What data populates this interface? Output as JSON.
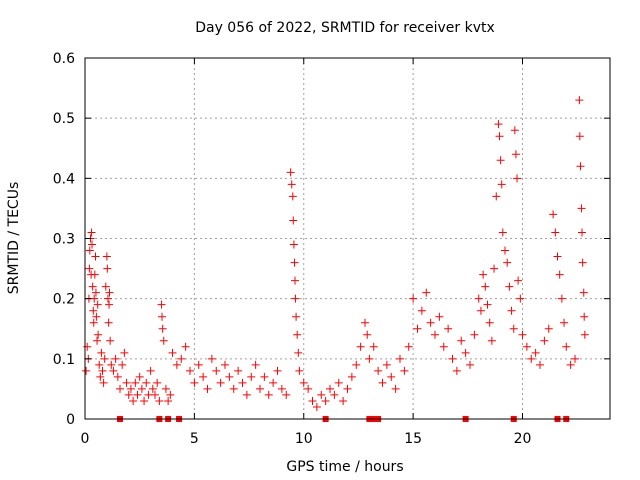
{
  "chart_data": {
    "type": "scatter",
    "title": "Day 056 of 2022, SRMTID for receiver kvtx",
    "xlabel": "GPS time / hours",
    "ylabel": "SRMTID / TECUs",
    "xlim": [
      0,
      24
    ],
    "ylim": [
      0,
      0.6
    ],
    "x_ticks": [
      0,
      5,
      10,
      15,
      20
    ],
    "x_tick_labels": [
      "0",
      "5",
      "10",
      "15",
      "20"
    ],
    "y_ticks": [
      0,
      0.1,
      0.2,
      0.3,
      0.4,
      0.5,
      0.6
    ],
    "y_tick_labels": [
      "0",
      "0.1",
      "0.2",
      "0.3",
      "0.4",
      "0.5",
      "0.6"
    ],
    "grid": true,
    "marker": "+",
    "marker_color": "#ff0000",
    "series": [
      {
        "name": "SRMTID",
        "points": [
          [
            0.05,
            0.08
          ],
          [
            0.1,
            0.12
          ],
          [
            0.15,
            0.1
          ],
          [
            0.18,
            0.2
          ],
          [
            0.2,
            0.25
          ],
          [
            0.22,
            0.28
          ],
          [
            0.25,
            0.3
          ],
          [
            0.28,
            0.24
          ],
          [
            0.3,
            0.31
          ],
          [
            0.32,
            0.29
          ],
          [
            0.35,
            0.22
          ],
          [
            0.38,
            0.18
          ],
          [
            0.4,
            0.16
          ],
          [
            0.42,
            0.2
          ],
          [
            0.45,
            0.24
          ],
          [
            0.48,
            0.27
          ],
          [
            0.5,
            0.21
          ],
          [
            0.52,
            0.17
          ],
          [
            0.55,
            0.13
          ],
          [
            0.58,
            0.19
          ],
          [
            0.6,
            0.14
          ],
          [
            0.65,
            0.09
          ],
          [
            0.7,
            0.07
          ],
          [
            0.75,
            0.11
          ],
          [
            0.8,
            0.08
          ],
          [
            0.85,
            0.06
          ],
          [
            0.9,
            0.1
          ],
          [
            0.95,
            0.22
          ],
          [
            1.0,
            0.27
          ],
          [
            1.02,
            0.25
          ],
          [
            1.05,
            0.2
          ],
          [
            1.08,
            0.16
          ],
          [
            1.1,
            0.19
          ],
          [
            1.12,
            0.21
          ],
          [
            1.15,
            0.13
          ],
          [
            1.2,
            0.09
          ],
          [
            1.3,
            0.08
          ],
          [
            1.4,
            0.1
          ],
          [
            1.5,
            0.07
          ],
          [
            1.6,
            0.05
          ],
          [
            1.7,
            0.09
          ],
          [
            1.8,
            0.11
          ],
          [
            1.9,
            0.06
          ],
          [
            2.0,
            0.04
          ],
          [
            2.1,
            0.05
          ],
          [
            2.2,
            0.03
          ],
          [
            2.3,
            0.06
          ],
          [
            2.4,
            0.04
          ],
          [
            2.5,
            0.07
          ],
          [
            2.6,
            0.05
          ],
          [
            2.7,
            0.03
          ],
          [
            2.8,
            0.06
          ],
          [
            2.9,
            0.04
          ],
          [
            3.0,
            0.08
          ],
          [
            3.1,
            0.05
          ],
          [
            3.2,
            0.04
          ],
          [
            3.3,
            0.06
          ],
          [
            3.4,
            0.03
          ],
          [
            3.5,
            0.19
          ],
          [
            3.52,
            0.17
          ],
          [
            3.55,
            0.15
          ],
          [
            3.6,
            0.13
          ],
          [
            3.7,
            0.05
          ],
          [
            3.8,
            0.03
          ],
          [
            3.9,
            0.04
          ],
          [
            4.0,
            0.11
          ],
          [
            4.2,
            0.09
          ],
          [
            4.4,
            0.1
          ],
          [
            4.6,
            0.12
          ],
          [
            4.8,
            0.08
          ],
          [
            5.0,
            0.06
          ],
          [
            5.2,
            0.09
          ],
          [
            5.4,
            0.07
          ],
          [
            5.6,
            0.05
          ],
          [
            5.8,
            0.1
          ],
          [
            6.0,
            0.08
          ],
          [
            6.2,
            0.06
          ],
          [
            6.4,
            0.09
          ],
          [
            6.6,
            0.07
          ],
          [
            6.8,
            0.05
          ],
          [
            7.0,
            0.08
          ],
          [
            7.2,
            0.06
          ],
          [
            7.4,
            0.04
          ],
          [
            7.6,
            0.07
          ],
          [
            7.8,
            0.09
          ],
          [
            8.0,
            0.05
          ],
          [
            8.2,
            0.07
          ],
          [
            8.4,
            0.04
          ],
          [
            8.6,
            0.06
          ],
          [
            8.8,
            0.08
          ],
          [
            9.0,
            0.05
          ],
          [
            9.2,
            0.04
          ],
          [
            9.4,
            0.41
          ],
          [
            9.45,
            0.39
          ],
          [
            9.5,
            0.37
          ],
          [
            9.52,
            0.33
          ],
          [
            9.55,
            0.29
          ],
          [
            9.58,
            0.26
          ],
          [
            9.6,
            0.23
          ],
          [
            9.62,
            0.2
          ],
          [
            9.65,
            0.17
          ],
          [
            9.7,
            0.14
          ],
          [
            9.75,
            0.11
          ],
          [
            9.8,
            0.08
          ],
          [
            10.0,
            0.06
          ],
          [
            10.2,
            0.05
          ],
          [
            10.4,
            0.03
          ],
          [
            10.6,
            0.02
          ],
          [
            10.8,
            0.04
          ],
          [
            11.0,
            0.03
          ],
          [
            11.2,
            0.05
          ],
          [
            11.4,
            0.04
          ],
          [
            11.6,
            0.06
          ],
          [
            11.8,
            0.03
          ],
          [
            12.0,
            0.05
          ],
          [
            12.2,
            0.07
          ],
          [
            12.4,
            0.09
          ],
          [
            12.6,
            0.12
          ],
          [
            12.8,
            0.16
          ],
          [
            12.9,
            0.14
          ],
          [
            13.0,
            0.1
          ],
          [
            13.2,
            0.12
          ],
          [
            13.4,
            0.08
          ],
          [
            13.6,
            0.06
          ],
          [
            13.8,
            0.09
          ],
          [
            14.0,
            0.07
          ],
          [
            14.2,
            0.05
          ],
          [
            14.4,
            0.1
          ],
          [
            14.6,
            0.08
          ],
          [
            14.8,
            0.12
          ],
          [
            15.0,
            0.2
          ],
          [
            15.2,
            0.15
          ],
          [
            15.4,
            0.18
          ],
          [
            15.6,
            0.21
          ],
          [
            15.8,
            0.16
          ],
          [
            16.0,
            0.14
          ],
          [
            16.2,
            0.17
          ],
          [
            16.4,
            0.12
          ],
          [
            16.6,
            0.15
          ],
          [
            16.8,
            0.1
          ],
          [
            17.0,
            0.08
          ],
          [
            17.2,
            0.13
          ],
          [
            17.4,
            0.11
          ],
          [
            17.6,
            0.09
          ],
          [
            17.8,
            0.14
          ],
          [
            18.0,
            0.2
          ],
          [
            18.1,
            0.18
          ],
          [
            18.2,
            0.24
          ],
          [
            18.3,
            0.22
          ],
          [
            18.4,
            0.19
          ],
          [
            18.5,
            0.16
          ],
          [
            18.6,
            0.13
          ],
          [
            18.7,
            0.25
          ],
          [
            18.8,
            0.37
          ],
          [
            18.9,
            0.49
          ],
          [
            18.95,
            0.47
          ],
          [
            19.0,
            0.43
          ],
          [
            19.05,
            0.39
          ],
          [
            19.1,
            0.31
          ],
          [
            19.2,
            0.28
          ],
          [
            19.3,
            0.26
          ],
          [
            19.4,
            0.22
          ],
          [
            19.5,
            0.18
          ],
          [
            19.6,
            0.15
          ],
          [
            19.65,
            0.48
          ],
          [
            19.7,
            0.44
          ],
          [
            19.75,
            0.4
          ],
          [
            19.8,
            0.23
          ],
          [
            19.9,
            0.2
          ],
          [
            20.0,
            0.14
          ],
          [
            20.2,
            0.12
          ],
          [
            20.4,
            0.1
          ],
          [
            20.6,
            0.11
          ],
          [
            20.8,
            0.09
          ],
          [
            21.0,
            0.13
          ],
          [
            21.2,
            0.15
          ],
          [
            21.4,
            0.34
          ],
          [
            21.5,
            0.31
          ],
          [
            21.6,
            0.27
          ],
          [
            21.7,
            0.24
          ],
          [
            21.8,
            0.2
          ],
          [
            21.9,
            0.16
          ],
          [
            22.0,
            0.12
          ],
          [
            22.2,
            0.09
          ],
          [
            22.4,
            0.1
          ],
          [
            22.6,
            0.53
          ],
          [
            22.62,
            0.47
          ],
          [
            22.65,
            0.42
          ],
          [
            22.7,
            0.35
          ],
          [
            22.72,
            0.31
          ],
          [
            22.75,
            0.26
          ],
          [
            22.8,
            0.21
          ],
          [
            22.82,
            0.17
          ],
          [
            22.85,
            0.14
          ]
        ]
      }
    ],
    "zero_markers_x": [
      1.6,
      3.4,
      3.8,
      4.3,
      11.0,
      13.0,
      13.2,
      13.4,
      17.4,
      19.6,
      21.6,
      22.0
    ]
  }
}
